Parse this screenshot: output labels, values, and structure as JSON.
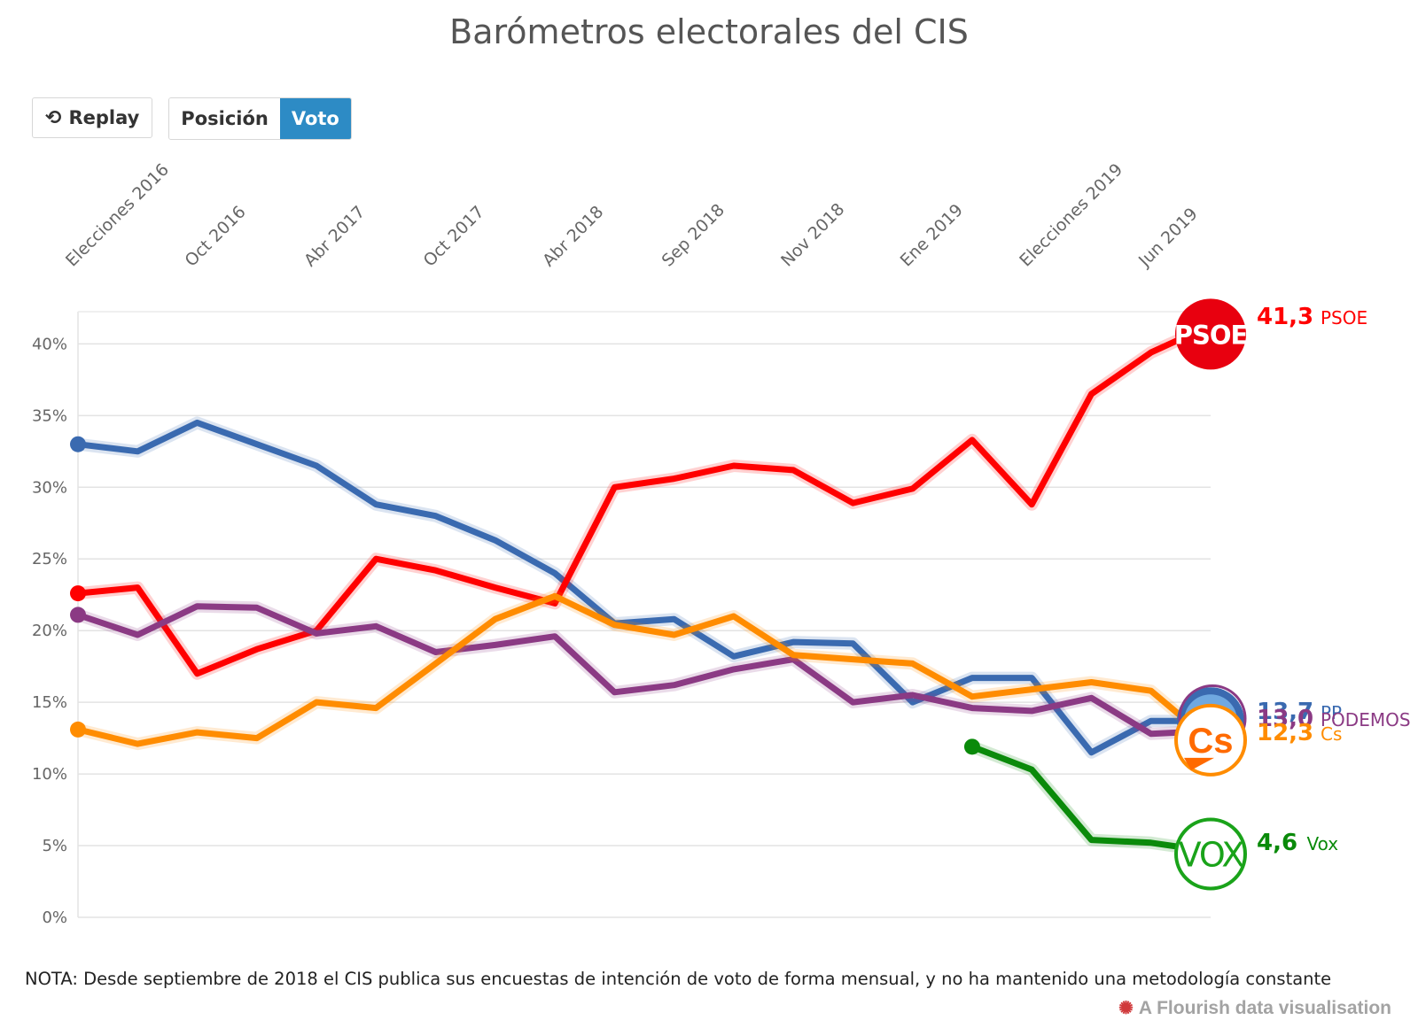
{
  "title": "Barómetros electorales del CIS",
  "controls": {
    "replay_label": "Replay",
    "replay_icon": "replay-icon",
    "options": [
      "Posición",
      "Voto"
    ],
    "active_option": "Voto"
  },
  "note": "NOTA: Desde septiembre de 2018 el CIS publica sus encuestas de intención de voto de forma mensual, y no ha mantenido una metodología constante",
  "credit": "A Flourish data visualisation",
  "chart_data": {
    "type": "line",
    "x_labels": [
      "Elecciones 2016",
      "Oct 2016",
      "Abr 2017",
      "Oct 2017",
      "Abr 2018",
      "Sep 2018",
      "Nov 2018",
      "Ene 2019",
      "Elecciones 2019",
      "Jun 2019"
    ],
    "x_label_positions": [
      0,
      2,
      4,
      6,
      8,
      10,
      12,
      14,
      16,
      18
    ],
    "ylim": [
      0,
      42
    ],
    "yticks": [
      0,
      5,
      10,
      15,
      20,
      25,
      30,
      35,
      40
    ],
    "ytick_suffix": "%",
    "grid": true,
    "series": [
      {
        "name": "PP",
        "color": "#3a6ab0",
        "values": [
          33.0,
          32.5,
          34.5,
          33.0,
          31.5,
          28.8,
          28.0,
          26.3,
          24.0,
          20.5,
          20.8,
          18.2,
          19.2,
          19.1,
          15.0,
          16.7,
          16.7,
          11.5,
          13.7,
          13.7
        ]
      },
      {
        "name": "PSOE",
        "color": "#ff0000",
        "values": [
          22.6,
          23.0,
          17.0,
          18.7,
          20.0,
          25.0,
          24.2,
          23.0,
          21.9,
          30.0,
          30.6,
          31.5,
          31.2,
          28.9,
          29.9,
          33.3,
          28.8,
          36.5,
          39.4,
          41.3
        ]
      },
      {
        "name": "PODEMOS",
        "color": "#8b3a84",
        "values": [
          21.1,
          19.7,
          21.7,
          21.6,
          19.8,
          20.3,
          18.5,
          19.0,
          19.6,
          15.7,
          16.2,
          17.3,
          18.0,
          15.0,
          15.5,
          14.6,
          14.4,
          15.3,
          12.8,
          13.0
        ]
      },
      {
        "name": "Cs",
        "color": "#ff8c00",
        "values": [
          13.1,
          12.1,
          12.9,
          12.5,
          15.0,
          14.6,
          17.7,
          20.8,
          22.4,
          20.4,
          19.7,
          21.0,
          18.3,
          18.0,
          17.7,
          15.4,
          15.9,
          16.4,
          15.8,
          12.3
        ]
      },
      {
        "name": "Vox",
        "color": "#0a8a0a",
        "start_index": 15,
        "values": [
          11.9,
          10.3,
          5.4,
          5.2,
          4.6
        ]
      }
    ],
    "end_labels": [
      {
        "party": "PSOE",
        "value": "41,3",
        "name": "PSOE",
        "color": "#ff0000",
        "badge": "PSOE"
      },
      {
        "party": "PP",
        "value": "13,7",
        "name": "PP",
        "color": "#3a6ab0"
      },
      {
        "party": "PODEMOS",
        "value": "13,0",
        "name": "PODEMOS",
        "color": "#8b3a84"
      },
      {
        "party": "Cs",
        "value": "12,3",
        "name": "Cs",
        "color": "#ff8c00",
        "badge": "Cs"
      },
      {
        "party": "Vox",
        "value": "4,6",
        "name": "Vox",
        "color": "#0a8a0a",
        "badge": "VOX"
      }
    ]
  }
}
